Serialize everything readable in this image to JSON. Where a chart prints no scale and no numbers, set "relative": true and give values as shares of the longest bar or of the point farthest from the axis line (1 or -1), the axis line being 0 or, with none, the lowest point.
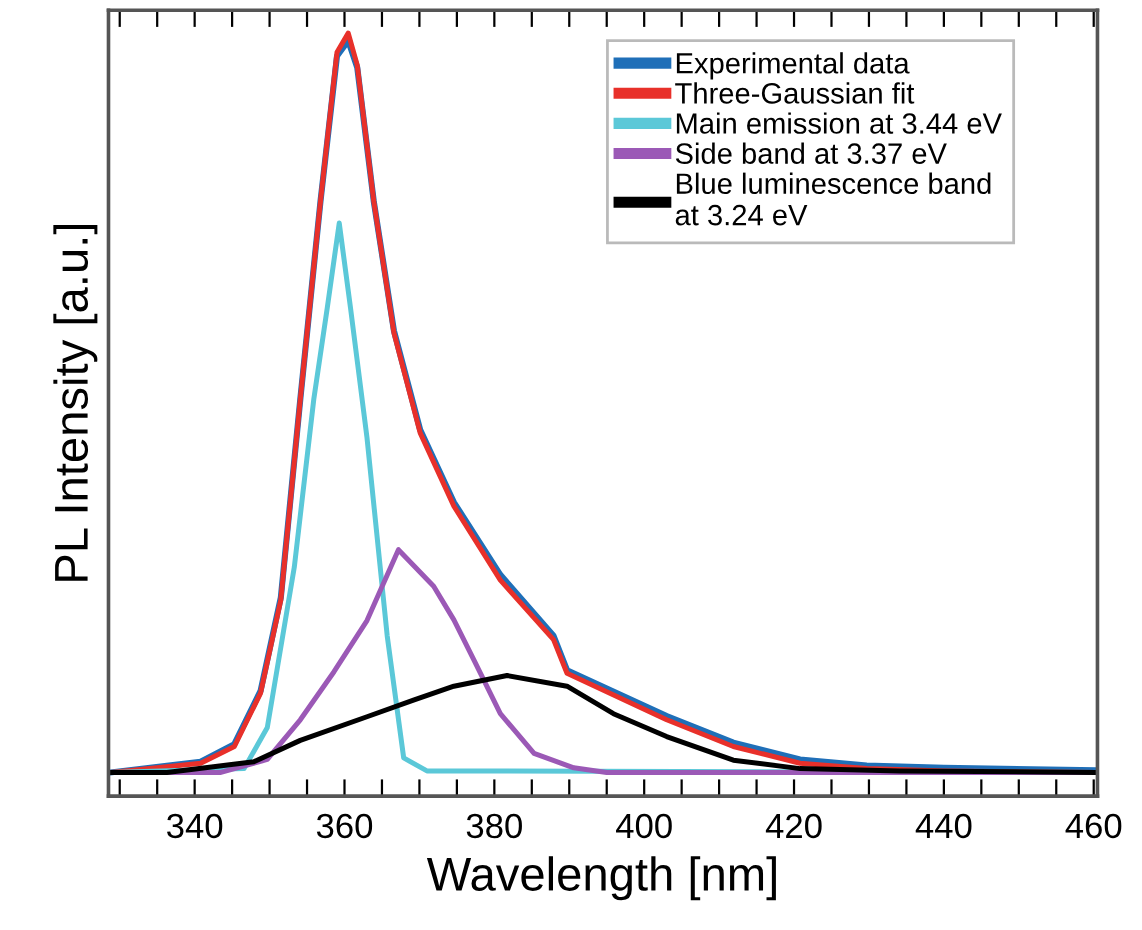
{
  "chart_data": {
    "type": "line",
    "relative": true,
    "xlabel": "Wavelength [nm]",
    "ylabel": "PL Intensity [a.u.]",
    "xlim": [
      328.5,
      460.5
    ],
    "xticks": [
      {
        "value": 330,
        "label": null
      },
      {
        "value": 335,
        "label": null
      },
      340,
      {
        "value": 345,
        "label": null
      },
      {
        "value": 350,
        "label": null
      },
      {
        "value": 355,
        "label": null
      },
      360,
      {
        "value": 365,
        "label": null
      },
      {
        "value": 370,
        "label": null
      },
      {
        "value": 375,
        "label": null
      },
      380,
      {
        "value": 385,
        "label": null
      },
      {
        "value": 390,
        "label": null
      },
      {
        "value": 395,
        "label": null
      },
      400,
      {
        "value": 405,
        "label": null
      },
      {
        "value": 410,
        "label": null
      },
      {
        "value": 415,
        "label": null
      },
      420,
      {
        "value": 425,
        "label": null
      },
      {
        "value": 430,
        "label": null
      },
      {
        "value": 435,
        "label": null
      },
      440,
      {
        "value": 445,
        "label": null
      },
      {
        "value": 450,
        "label": null
      },
      {
        "value": 455,
        "label": null
      },
      460
    ],
    "legend": "top right",
    "grid": false,
    "marker": "none",
    "line_style": "solid",
    "series": [
      {
        "name": "Experimental data",
        "color": "#1f6fb8",
        "x": [
          328.8,
          340.8,
          345.3,
          348.8,
          351.5,
          354.1,
          356.8,
          359.0,
          360.5,
          361.7,
          363.9,
          366.6,
          370.1,
          374.6,
          380.8,
          387.9,
          389.7,
          403.0,
          411.9,
          420.8,
          429.7,
          440.0,
          460.0
        ],
        "values": [
          0.031,
          0.045,
          0.068,
          0.138,
          0.26,
          0.52,
          0.78,
          0.97,
          0.99,
          0.955,
          0.78,
          0.61,
          0.48,
          0.385,
          0.29,
          0.21,
          0.165,
          0.105,
          0.07,
          0.048,
          0.04,
          0.037,
          0.034
        ]
      },
      {
        "name": "Three-Gaussian fit",
        "color": "#e8302a",
        "x": [
          328.8,
          340.8,
          345.3,
          348.8,
          351.5,
          354.1,
          356.8,
          359.0,
          360.5,
          361.7,
          363.9,
          366.6,
          370.1,
          374.6,
          380.8,
          387.9,
          389.7,
          403.0,
          411.9,
          420.8,
          429.7,
          440.0,
          460.0
        ],
        "values": [
          0.031,
          0.043,
          0.065,
          0.135,
          0.257,
          0.52,
          0.78,
          0.975,
          1.0,
          0.958,
          0.78,
          0.607,
          0.476,
          0.38,
          0.283,
          0.205,
          0.161,
          0.1,
          0.065,
          0.043,
          0.036,
          0.033,
          0.031
        ]
      },
      {
        "name": "Main emission at 3.44 eV",
        "color": "#5bc8d8",
        "x": [
          328.8,
          346.6,
          349.7,
          353.3,
          355.9,
          357.7,
          359.3,
          360.8,
          363.0,
          365.7,
          367.9,
          371.0,
          460.0
        ],
        "values": [
          0.031,
          0.036,
          0.09,
          0.3,
          0.52,
          0.64,
          0.751,
          0.64,
          0.47,
          0.21,
          0.05,
          0.033,
          0.031
        ]
      },
      {
        "name": "Side band at 3.37 eV",
        "color": "#9b59b6",
        "x": [
          328.8,
          343.5,
          349.7,
          354.1,
          358.6,
          363.0,
          367.2,
          371.9,
          374.6,
          377.3,
          380.8,
          385.3,
          390.6,
          395.0,
          460.0
        ],
        "values": [
          0.031,
          0.031,
          0.048,
          0.1,
          0.163,
          0.23,
          0.323,
          0.275,
          0.231,
          0.178,
          0.108,
          0.056,
          0.037,
          0.031,
          0.031
        ]
      },
      {
        "name": "Blue luminescence band\nat 3.24 eV",
        "color": "#000000",
        "x": [
          328.8,
          336.3,
          347.9,
          354.1,
          363.0,
          369.3,
          374.6,
          381.7,
          389.7,
          395.9,
          403.0,
          411.9,
          420.8,
          434.1,
          460.0
        ],
        "values": [
          0.031,
          0.031,
          0.045,
          0.073,
          0.104,
          0.126,
          0.144,
          0.158,
          0.144,
          0.108,
          0.078,
          0.047,
          0.036,
          0.033,
          0.031
        ]
      }
    ]
  }
}
